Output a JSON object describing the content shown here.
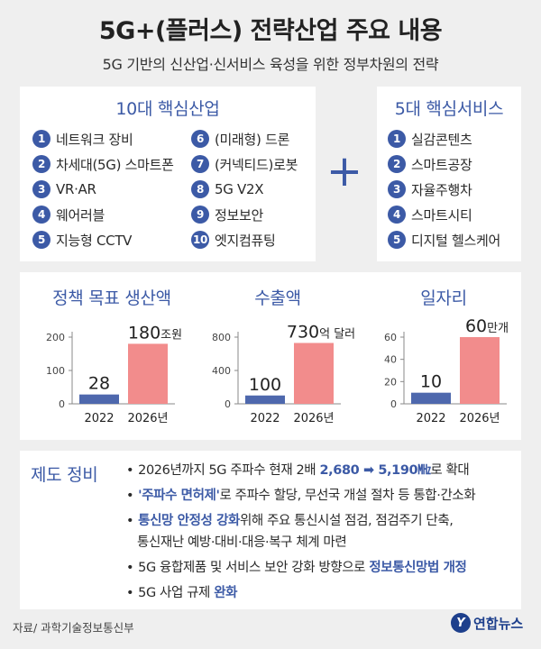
{
  "header": {
    "title": "5G+(플러스) 전략산업 주요 내용",
    "subtitle": "5G 기반의 신산업·신서비스 육성을 위한 정부차원의 전략"
  },
  "industries": {
    "heading": "10대 핵심산업",
    "items": [
      {
        "num": "1",
        "label": "네트워크 장비"
      },
      {
        "num": "2",
        "label": "차세대(5G) 스마트폰"
      },
      {
        "num": "3",
        "label": "VR·AR"
      },
      {
        "num": "4",
        "label": "웨어러블"
      },
      {
        "num": "5",
        "label": "지능형 CCTV"
      },
      {
        "num": "6",
        "label": "(미래형) 드론"
      },
      {
        "num": "7",
        "label": "(커넥티드)로봇"
      },
      {
        "num": "8",
        "label": "5G V2X"
      },
      {
        "num": "9",
        "label": "정보보안"
      },
      {
        "num": "10",
        "label": "엣지컴퓨팅"
      }
    ]
  },
  "plus_sign": "+",
  "services": {
    "heading": "5대 핵심서비스",
    "items": [
      {
        "num": "1",
        "label": "실감콘텐츠"
      },
      {
        "num": "2",
        "label": "스마트공장"
      },
      {
        "num": "3",
        "label": "자율주행차"
      },
      {
        "num": "4",
        "label": "스마트시티"
      },
      {
        "num": "5",
        "label": "디지털 헬스케어"
      }
    ]
  },
  "chart_data": [
    {
      "type": "bar",
      "title": "정책 목표 생산액",
      "categories": [
        "2022",
        "2026년"
      ],
      "values": [
        28,
        180
      ],
      "value_labels": [
        "28",
        "180"
      ],
      "value_units": [
        "",
        "조원"
      ],
      "yticks": [
        "200",
        "100",
        "0"
      ],
      "ytick_values": [
        200,
        100,
        0
      ],
      "ylim": [
        0,
        200
      ],
      "colors": [
        "#4e68ad",
        "#f28c8c"
      ]
    },
    {
      "type": "bar",
      "title": "수출액",
      "categories": [
        "2022",
        "2026년"
      ],
      "values": [
        100,
        730
      ],
      "value_labels": [
        "100",
        "730"
      ],
      "value_units": [
        "",
        "억 달러"
      ],
      "yticks": [
        "800",
        "400",
        "0"
      ],
      "ytick_values": [
        800,
        400,
        0
      ],
      "ylim": [
        0,
        800
      ],
      "colors": [
        "#4e68ad",
        "#f28c8c"
      ]
    },
    {
      "type": "bar",
      "title": "일자리",
      "categories": [
        "2022",
        "2026년"
      ],
      "values": [
        10,
        60
      ],
      "value_labels": [
        "10",
        "60"
      ],
      "value_units": [
        "",
        "만개"
      ],
      "yticks": [
        "60",
        "40",
        "20",
        "0"
      ],
      "ytick_values": [
        60,
        40,
        20,
        0
      ],
      "ylim": [
        0,
        60
      ],
      "colors": [
        "#4e68ad",
        "#f28c8c"
      ]
    }
  ],
  "policy": {
    "heading": "제도 정비",
    "items": [
      {
        "bullet": "•",
        "a": "2026년까지 5G 주파수 현재 2배 ",
        "b": "2,680 ➡ 5,190㎒",
        "c": "로 확대"
      },
      {
        "bullet": "•",
        "a": "",
        "b": "'주파수 면허제'",
        "c": "로 주파수 할당, 무선국 개설 절차 등 통합·간소화"
      },
      {
        "bullet": "•",
        "a": "",
        "b": "통신망 안정성 강화",
        "c": "위해 주요 통신시설 점검, 점검주기 단축,"
      },
      {
        "bullet": "",
        "a": "통신재난 예방·대비·대응·복구 체계 마련",
        "b": "",
        "c": ""
      },
      {
        "bullet": "•",
        "a": "5G 융합제품 및 서비스 보안 강화 방향으로 ",
        "b": "정보통신망법 개정",
        "c": ""
      },
      {
        "bullet": "•",
        "a": "5G 사업 규제 ",
        "b": "완화",
        "c": ""
      }
    ]
  },
  "footer": {
    "source": "자료/ 과학기술정보통신부",
    "logo_mark": "Y",
    "logo_text": "연합뉴스"
  }
}
